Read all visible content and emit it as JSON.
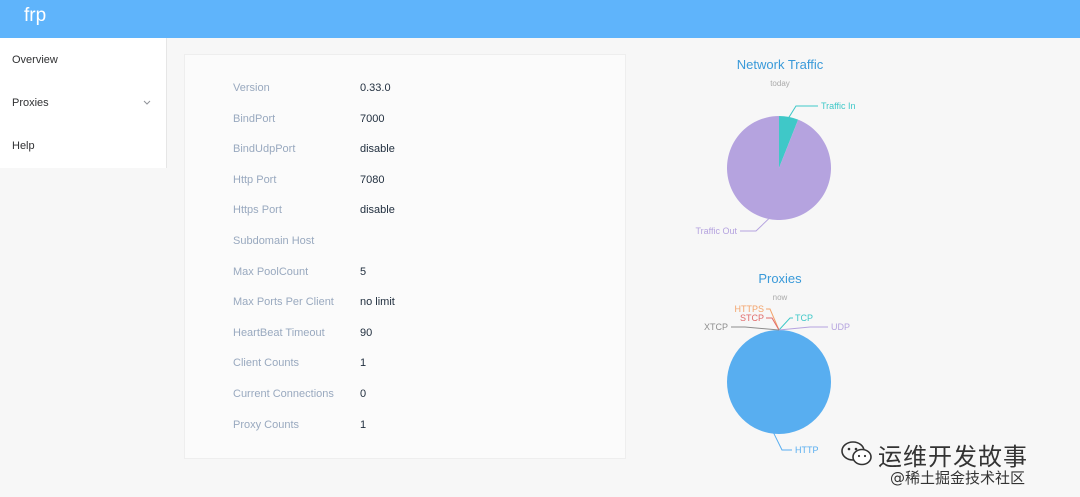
{
  "header": {
    "brand": "frp"
  },
  "sidebar": {
    "items": [
      {
        "label": "Overview"
      },
      {
        "label": "Proxies"
      },
      {
        "label": "Help"
      }
    ]
  },
  "server_info": [
    {
      "key": "Version",
      "value": "0.33.0"
    },
    {
      "key": "BindPort",
      "value": "7000"
    },
    {
      "key": "BindUdpPort",
      "value": "disable"
    },
    {
      "key": "Http Port",
      "value": "7080"
    },
    {
      "key": "Https Port",
      "value": "disable"
    },
    {
      "key": "Subdomain Host",
      "value": ""
    },
    {
      "key": "Max PoolCount",
      "value": "5"
    },
    {
      "key": "Max Ports Per Client",
      "value": "no limit"
    },
    {
      "key": "HeartBeat Timeout",
      "value": "90"
    },
    {
      "key": "Client Counts",
      "value": "1"
    },
    {
      "key": "Current Connections",
      "value": "0"
    },
    {
      "key": "Proxy Counts",
      "value": "1"
    }
  ],
  "watermark": {
    "line1": "运维开发故事",
    "line2": "@稀土掘金技术社区"
  },
  "colors": {
    "header": "#5fb4fb",
    "traffic_in": "#3fc8c8",
    "traffic_out": "#b5a3df",
    "http": "#58aef0"
  },
  "chart_data": [
    {
      "type": "pie",
      "title": "Network Traffic",
      "subtitle": "today",
      "legend": "none",
      "slices": [
        {
          "label": "Traffic In",
          "value": 6,
          "color": "#3fc8c8"
        },
        {
          "label": "Traffic Out",
          "value": 94,
          "color": "#b5a3df"
        }
      ]
    },
    {
      "type": "pie",
      "title": "Proxies",
      "subtitle": "now",
      "legend": "none",
      "slices": [
        {
          "label": "HTTP",
          "value": 1,
          "color": "#58aef0"
        },
        {
          "label": "TCP",
          "value": 0,
          "color": "#3fc8c8"
        },
        {
          "label": "UDP",
          "value": 0,
          "color": "#b5a3df"
        },
        {
          "label": "HTTPS",
          "value": 0,
          "color": "#f3a36b"
        },
        {
          "label": "STCP",
          "value": 0,
          "color": "#e06b6b"
        },
        {
          "label": "XTCP",
          "value": 0,
          "color": "#8e8e8e"
        }
      ]
    }
  ]
}
